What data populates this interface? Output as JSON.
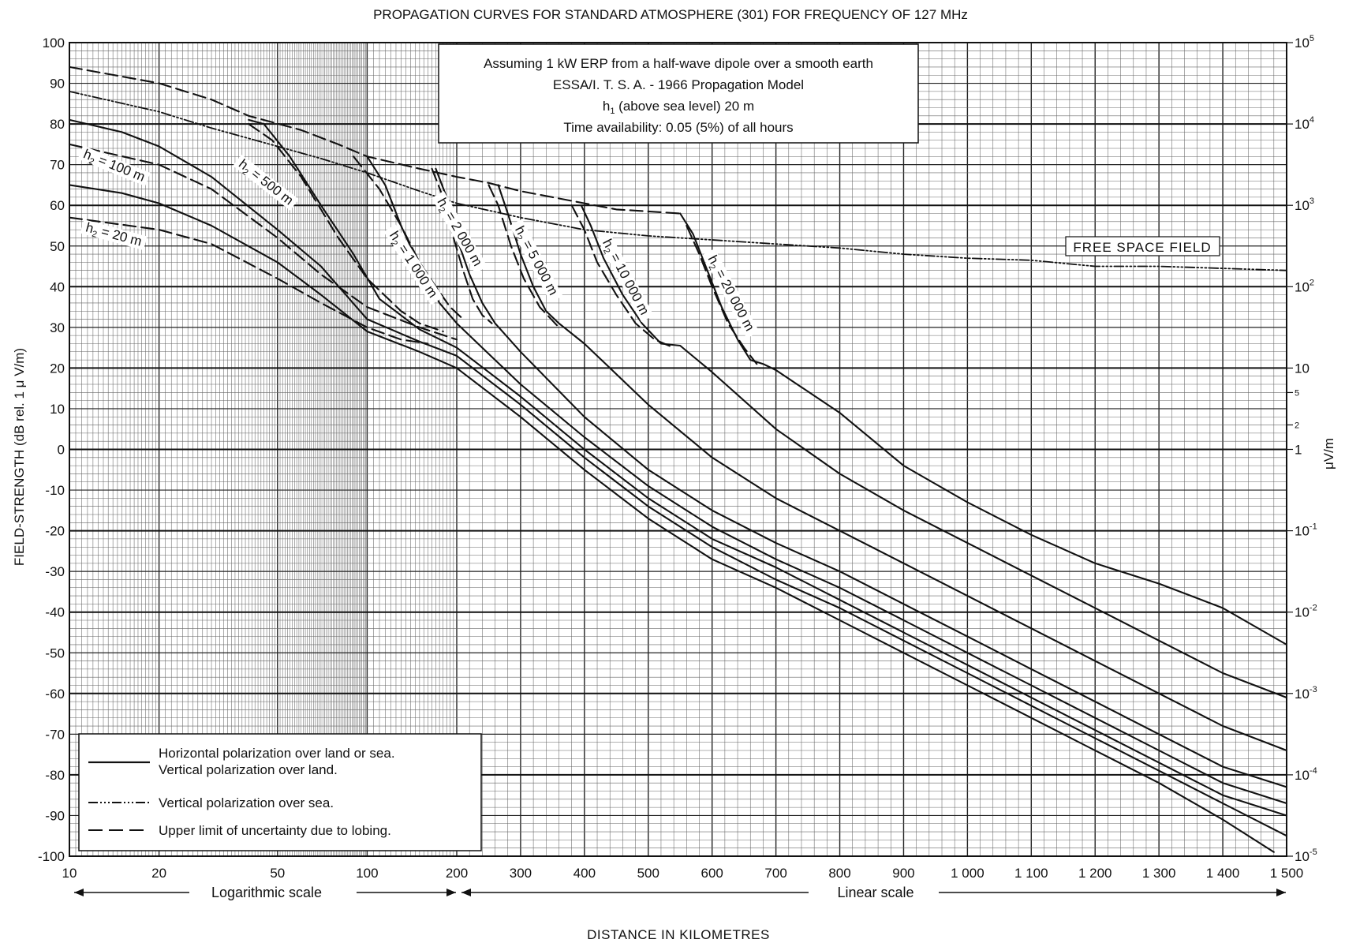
{
  "chart_data": {
    "type": "line",
    "title": "PROPAGATION CURVES FOR STANDARD ATMOSPHERE (301) FOR FREQUENCY OF 127 MHz",
    "xlabel": "DISTANCE IN KILOMETRES",
    "ylabel": "FIELD-STRENGTH (dB rel. 1 μ V/m)",
    "y2label": "μV/m",
    "xlim": [
      10,
      1500
    ],
    "ylim": [
      -100,
      100
    ],
    "x_scale_note": "log 10–200 km, linear 200–1500 km",
    "log_scale_label": "Logarithmic scale",
    "linear_scale_label": "Linear scale",
    "x_ticks_log": [
      10,
      20,
      50,
      100,
      200
    ],
    "x_ticks_lin": [
      300,
      400,
      500,
      600,
      700,
      800,
      900,
      1000,
      1100,
      1200,
      1300,
      1400,
      1500
    ],
    "x_tick_labels": [
      "10",
      "20",
      "50",
      "100",
      "200",
      "300",
      "400",
      "500",
      "600",
      "700",
      "800",
      "900",
      "1 000",
      "1 100",
      "1 200",
      "1 300",
      "1 400",
      "1 500"
    ],
    "y_ticks": [
      100,
      90,
      80,
      70,
      60,
      50,
      40,
      30,
      20,
      10,
      0,
      -10,
      -20,
      -30,
      -40,
      -50,
      -60,
      -70,
      -80,
      -90,
      -100
    ],
    "y_tick_labels": [
      "100",
      "90",
      "80",
      "70",
      "60",
      "50",
      "40",
      "30",
      "20",
      "10",
      "0",
      "-10",
      "-20",
      "-30",
      "-40",
      "-50",
      "-60",
      "-70",
      "-80",
      "-90",
      "-100"
    ],
    "y2_ticks": [
      {
        "db": 100,
        "base": "10",
        "exp": "5"
      },
      {
        "db": 80,
        "base": "10",
        "exp": "4"
      },
      {
        "db": 60,
        "base": "10",
        "exp": "3"
      },
      {
        "db": 40,
        "base": "10",
        "exp": "2"
      },
      {
        "db": 20,
        "base": "10",
        "exp": ""
      },
      {
        "db": 13.98,
        "base": "5",
        "exp": "",
        "small": true
      },
      {
        "db": 6.02,
        "base": "2",
        "exp": "",
        "small": true
      },
      {
        "db": 0,
        "base": "1",
        "exp": ""
      },
      {
        "db": -20,
        "base": "10",
        "exp": "-1"
      },
      {
        "db": -40,
        "base": "10",
        "exp": "-2"
      },
      {
        "db": -60,
        "base": "10",
        "exp": "-3"
      },
      {
        "db": -80,
        "base": "10",
        "exp": "-4"
      },
      {
        "db": -100,
        "base": "10",
        "exp": "-5"
      }
    ],
    "info_box": {
      "line1": "Assuming 1 kW ERP from a half-wave dipole over a smooth earth",
      "line2": "ESSA/I. T. S. A. - 1966 Propagation Model",
      "line3_pre": "h",
      "line3_sub": "1",
      "line3_post": " (above sea level) 20 m",
      "line4": "Time availability: 0.05 (5%) of all hours"
    },
    "legend": {
      "placement": "bottom-left",
      "solid_1": "Horizontal polarization over land or sea.",
      "solid_2": "Vertical polarization over land.",
      "dashdot": "Vertical polarization over sea.",
      "dashed": "Upper limit of uncertainty due to lobing."
    },
    "free_space_label": "FREE SPACE FIELD",
    "curve_labels": [
      {
        "h": "h",
        "sub": "2",
        "val": " = 100 m"
      },
      {
        "h": "h",
        "sub": "2",
        "val": " = 20 m"
      },
      {
        "h": "h",
        "sub": "2",
        "val": " = 500 m"
      },
      {
        "h": "h",
        "sub": "2",
        "val": " = 1 000 m"
      },
      {
        "h": "h",
        "sub": "2",
        "val": " = 2 000 m"
      },
      {
        "h": "h",
        "sub": "2",
        "val": " = 5 000 m"
      },
      {
        "h": "h",
        "sub": "2",
        "val": " = 10 000 m"
      },
      {
        "h": "h",
        "sub": "2",
        "val": " = 20 000 m"
      }
    ],
    "series": [
      {
        "style": "solid",
        "x": [
          10,
          15,
          20,
          30,
          50,
          70,
          100,
          150,
          200,
          300,
          400,
          500,
          600,
          700,
          800,
          900,
          1000,
          1100,
          1200,
          1300,
          1400,
          1480
        ],
        "y": [
          65,
          63,
          60.5,
          55,
          46,
          38,
          29,
          24,
          20,
          8,
          -5,
          -17,
          -27,
          -34,
          -42,
          -50,
          -58,
          -66,
          -74,
          -82,
          -91,
          -99
        ]
      },
      {
        "style": "solid",
        "x": [
          10,
          15,
          20,
          30,
          50,
          70,
          100,
          150,
          200,
          300,
          400,
          500,
          600,
          700,
          800,
          900,
          1000,
          1100,
          1200,
          1300,
          1400,
          1500
        ],
        "y": [
          81,
          78,
          74.5,
          67,
          54,
          45,
          32,
          26.5,
          23,
          11,
          -2,
          -14,
          -24,
          -32,
          -39,
          -47,
          -55,
          -63,
          -71,
          -79,
          -87,
          -95
        ]
      },
      {
        "style": "solid",
        "x": [
          40,
          45,
          55,
          70,
          90,
          110,
          150,
          200,
          300,
          400,
          500,
          600,
          700,
          800,
          900,
          1000,
          1100,
          1200,
          1300,
          1400,
          1500
        ],
        "y": [
          81,
          80,
          72,
          60,
          48,
          37,
          29.5,
          25,
          13,
          0,
          -12,
          -22,
          -29,
          -37,
          -45,
          -53,
          -61,
          -69,
          -77,
          -85,
          -90
        ]
      },
      {
        "style": "solid",
        "x": [
          100,
          115,
          130,
          150,
          175,
          200,
          300,
          400,
          500,
          600,
          700,
          800,
          900,
          1000,
          1100,
          1200,
          1300,
          1400,
          1500
        ],
        "y": [
          72,
          65,
          55,
          45,
          36,
          31,
          16,
          3,
          -9,
          -19,
          -27,
          -34,
          -42,
          -50,
          -58,
          -66,
          -74,
          -82,
          -87
        ]
      },
      {
        "style": "solid",
        "x": [
          170,
          185,
          200,
          220,
          240,
          260,
          300,
          400,
          500,
          600,
          700,
          800,
          900,
          1000,
          1100,
          1200,
          1300,
          1400,
          1500
        ],
        "y": [
          69,
          62,
          52,
          43,
          36,
          31,
          24,
          8,
          -5,
          -15,
          -23,
          -30,
          -38,
          -46,
          -54,
          -62,
          -70,
          -78,
          -83
        ]
      },
      {
        "style": "solid",
        "x": [
          265,
          280,
          300,
          320,
          340,
          360,
          400,
          500,
          600,
          700,
          800,
          900,
          1000,
          1100,
          1200,
          1300,
          1400,
          1500
        ],
        "y": [
          65,
          58,
          48,
          40,
          34,
          31,
          26,
          11,
          -2,
          -12,
          -20,
          -28,
          -36,
          -44,
          -52,
          -60,
          -68,
          -74
        ]
      },
      {
        "style": "solid",
        "x": [
          395,
          410,
          430,
          460,
          490,
          520,
          550,
          600,
          700,
          800,
          900,
          1000,
          1100,
          1200,
          1300,
          1400,
          1500
        ],
        "y": [
          60,
          55,
          47,
          38,
          31,
          26,
          25.5,
          19,
          5,
          -6,
          -15,
          -23,
          -31,
          -39,
          -47,
          -55,
          -61
        ]
      },
      {
        "style": "solid",
        "x": [
          550,
          570,
          590,
          615,
          640,
          660,
          680,
          700,
          800,
          900,
          1000,
          1100,
          1200,
          1300,
          1400,
          1500
        ],
        "y": [
          58,
          53,
          45,
          35,
          27,
          22,
          21,
          19.5,
          9,
          -4,
          -13,
          -21,
          -28,
          -33,
          -39,
          -48
        ]
      },
      {
        "style": "dashed",
        "x": [
          10,
          20,
          30,
          50,
          70,
          100,
          130,
          160
        ],
        "y": [
          57,
          54,
          50.5,
          42,
          36,
          30,
          27,
          26
        ]
      },
      {
        "style": "dashed",
        "x": [
          10,
          20,
          30,
          50,
          70,
          100,
          150,
          200
        ],
        "y": [
          75,
          70,
          64,
          52,
          43,
          35,
          30,
          27
        ]
      },
      {
        "style": "dashed",
        "x": [
          40,
          48,
          60,
          80,
          100,
          130,
          150,
          180
        ],
        "y": [
          80,
          76,
          67,
          52,
          42,
          34,
          31,
          29
        ]
      },
      {
        "style": "dashed",
        "x": [
          90,
          110,
          130,
          150,
          170,
          190,
          210
        ],
        "y": [
          72,
          64,
          55,
          46,
          40,
          35,
          32
        ]
      },
      {
        "style": "dashed",
        "x": [
          165,
          180,
          195,
          210,
          225,
          240,
          255
        ],
        "y": [
          69,
          62,
          52,
          44,
          37,
          33,
          31
        ]
      },
      {
        "style": "dashed",
        "x": [
          250,
          265,
          285,
          305,
          330,
          360
        ],
        "y": [
          65,
          60,
          50,
          42,
          35,
          30
        ]
      },
      {
        "style": "dashed",
        "x": [
          380,
          400,
          420,
          450,
          480,
          510,
          540
        ],
        "y": [
          60,
          54,
          46,
          38,
          31,
          27,
          25
        ]
      },
      {
        "style": "dashed",
        "x": [
          560,
          580,
          600,
          625,
          650,
          670
        ],
        "y": [
          55,
          48,
          40,
          31,
          25,
          21
        ]
      },
      {
        "style": "dashed",
        "x": [
          10,
          20,
          30,
          40,
          60,
          80,
          100,
          150,
          200,
          250,
          300,
          350,
          400,
          450,
          500,
          550
        ],
        "y": [
          94,
          90,
          86,
          82,
          78.5,
          75,
          72,
          69,
          67,
          65.5,
          63.5,
          62,
          60.5,
          59,
          58.5,
          58
        ]
      },
      {
        "style": "dashdot",
        "x": [
          10,
          20,
          30,
          50,
          70,
          100,
          150,
          200,
          300,
          400,
          500,
          600,
          700,
          800,
          900,
          1000,
          1100,
          1200,
          1300,
          1400,
          1500
        ],
        "y": [
          88,
          83,
          79,
          74.5,
          71.5,
          68,
          63.5,
          60.5,
          57,
          54,
          52.5,
          51.5,
          50.5,
          49.5,
          48,
          47,
          46.5,
          45,
          45,
          44.5,
          44
        ]
      }
    ]
  }
}
